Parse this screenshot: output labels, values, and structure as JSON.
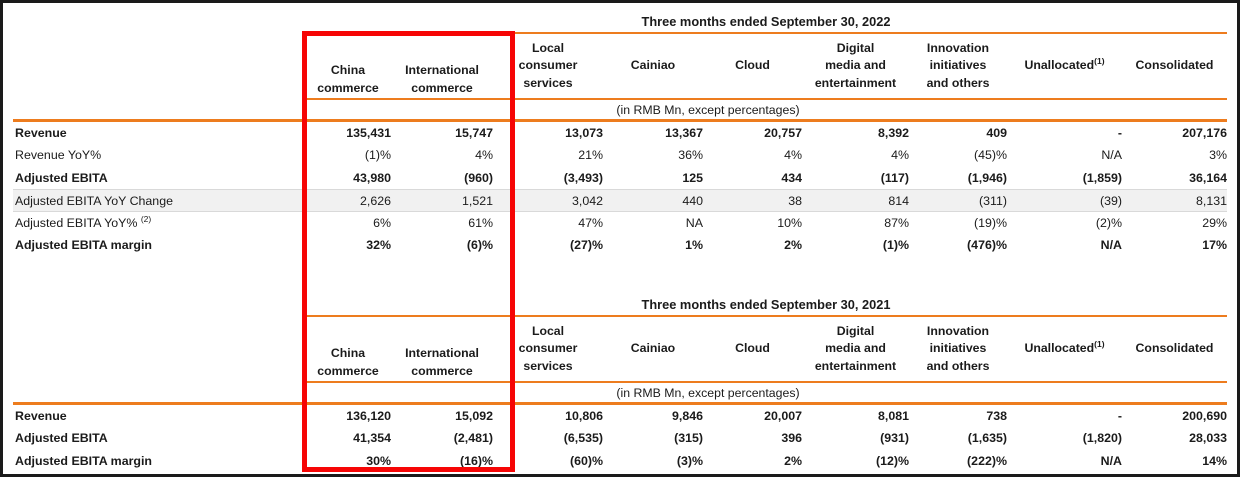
{
  "colors": {
    "accent_orange": "#ED7C1E",
    "annotation_red": "#F60505",
    "stripe_background": "#F1F1F1",
    "stripe_border": "#D9D9D9",
    "text": "#1B1B1B"
  },
  "annotation": {
    "shape": "red-rectangle",
    "highlighted_columns": [
      "China commerce",
      "International commerce"
    ],
    "spans": "both tables, header through last row"
  },
  "tables": [
    {
      "title": "Three months ended September 30, 2022",
      "unit_note": "(in RMB Mn, except percentages)",
      "columns": [
        {
          "lines": [
            "China",
            "commerce"
          ],
          "valign": "bottom"
        },
        {
          "lines": [
            "International",
            "commerce"
          ],
          "valign": "bottom"
        },
        {
          "lines": [
            "Local",
            "consumer",
            "services"
          ],
          "valign": "middle"
        },
        {
          "lines": [
            "Cainiao"
          ],
          "valign": "middle"
        },
        {
          "lines": [
            "Cloud"
          ],
          "valign": "middle"
        },
        {
          "lines": [
            "Digital",
            "media and",
            "entertainment"
          ],
          "valign": "middle"
        },
        {
          "lines": [
            "Innovation",
            "initiatives",
            "and others"
          ],
          "valign": "middle"
        },
        {
          "lines": [
            "Unallocated"
          ],
          "sup": "(1)",
          "valign": "middle"
        },
        {
          "lines": [
            "Consolidated"
          ],
          "valign": "middle"
        }
      ],
      "rows": [
        {
          "label": "Revenue",
          "bold": true,
          "highlight": false,
          "values": [
            "135,431",
            "15,747",
            "13,073",
            "13,367",
            "20,757",
            "8,392",
            "409",
            "-",
            "207,176"
          ]
        },
        {
          "label": "Revenue YoY%",
          "bold": false,
          "highlight": false,
          "values": [
            "(1)%",
            "4%",
            "21%",
            "36%",
            "4%",
            "4%",
            "(45)%",
            "N/A",
            "3%"
          ]
        },
        {
          "label": "Adjusted EBITA",
          "bold": true,
          "highlight": false,
          "values": [
            "43,980",
            "(960)",
            "(3,493)",
            "125",
            "434",
            "(117)",
            "(1,946)",
            "(1,859)",
            "36,164"
          ]
        },
        {
          "label": "Adjusted EBITA YoY Change",
          "bold": false,
          "highlight": true,
          "values": [
            "2,626",
            "1,521",
            "3,042",
            "440",
            "38",
            "814",
            "(311)",
            "(39)",
            "8,131"
          ]
        },
        {
          "label": "Adjusted EBITA YoY%",
          "label_sup": "(2)",
          "bold": false,
          "highlight": false,
          "values": [
            "6%",
            "61%",
            "47%",
            "NA",
            "10%",
            "87%",
            "(19)%",
            "(2)%",
            "29%"
          ]
        },
        {
          "label": "Adjusted EBITA margin",
          "bold": true,
          "highlight": false,
          "values": [
            "32%",
            "(6)%",
            "(27)%",
            "1%",
            "2%",
            "(1)%",
            "(476)%",
            "N/A",
            "17%"
          ]
        }
      ]
    },
    {
      "title": "Three months ended September 30, 2021",
      "unit_note": "(in RMB Mn, except percentages)",
      "columns": [
        {
          "lines": [
            "China",
            "commerce"
          ],
          "valign": "bottom"
        },
        {
          "lines": [
            "International",
            "commerce"
          ],
          "valign": "bottom"
        },
        {
          "lines": [
            "Local",
            "consumer",
            "services"
          ],
          "valign": "middle"
        },
        {
          "lines": [
            "Cainiao"
          ],
          "valign": "middle"
        },
        {
          "lines": [
            "Cloud"
          ],
          "valign": "middle"
        },
        {
          "lines": [
            "Digital",
            "media and",
            "entertainment"
          ],
          "valign": "middle"
        },
        {
          "lines": [
            "Innovation",
            "initiatives",
            "and others"
          ],
          "valign": "middle"
        },
        {
          "lines": [
            "Unallocated"
          ],
          "sup": "(1)",
          "valign": "middle"
        },
        {
          "lines": [
            "Consolidated"
          ],
          "valign": "middle"
        }
      ],
      "rows": [
        {
          "label": "Revenue",
          "bold": true,
          "highlight": false,
          "values": [
            "136,120",
            "15,092",
            "10,806",
            "9,846",
            "20,007",
            "8,081",
            "738",
            "-",
            "200,690"
          ]
        },
        {
          "label": "Adjusted EBITA",
          "bold": true,
          "highlight": false,
          "values": [
            "41,354",
            "(2,481)",
            "(6,535)",
            "(315)",
            "396",
            "(931)",
            "(1,635)",
            "(1,820)",
            "28,033"
          ]
        },
        {
          "label": "Adjusted EBITA margin",
          "bold": true,
          "highlight": false,
          "values": [
            "30%",
            "(16)%",
            "(60)%",
            "(3)%",
            "2%",
            "(12)%",
            "(222)%",
            "N/A",
            "14%"
          ]
        }
      ]
    }
  ]
}
